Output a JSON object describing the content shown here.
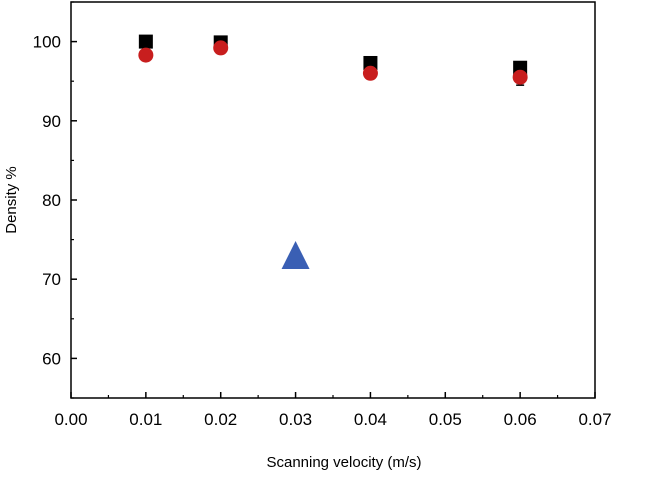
{
  "chart_data": {
    "type": "scatter",
    "xlabel": "Scanning velocity (m/s)",
    "ylabel": "Density %",
    "xlim": [
      0.0,
      0.07
    ],
    "ylim": [
      55,
      105
    ],
    "x_ticks": [
      "0.00",
      "0.01",
      "0.02",
      "0.03",
      "0.04",
      "0.05",
      "0.06",
      "0.07"
    ],
    "y_ticks": [
      "60",
      "70",
      "80",
      "90",
      "100"
    ],
    "grid": false,
    "legend": "none",
    "series": [
      {
        "marker": "square",
        "color": "#000000",
        "points": [
          {
            "x": 0.01,
            "y": 100.0
          },
          {
            "x": 0.02,
            "y": 99.9
          },
          {
            "x": 0.04,
            "y": 97.3
          },
          {
            "x": 0.06,
            "y": 96.7
          }
        ]
      },
      {
        "marker": "circle",
        "color": "#c81e1e",
        "points": [
          {
            "x": 0.01,
            "y": 98.3,
            "err": 0.4
          },
          {
            "x": 0.02,
            "y": 99.2,
            "err": 0.5
          },
          {
            "x": 0.04,
            "y": 96.0,
            "err": 0.5
          },
          {
            "x": 0.06,
            "y": 95.5,
            "err": 1.0
          }
        ]
      },
      {
        "marker": "triangle",
        "color": "#3a5fb4",
        "points": [
          {
            "x": 0.03,
            "y": 72.7
          }
        ]
      }
    ]
  }
}
